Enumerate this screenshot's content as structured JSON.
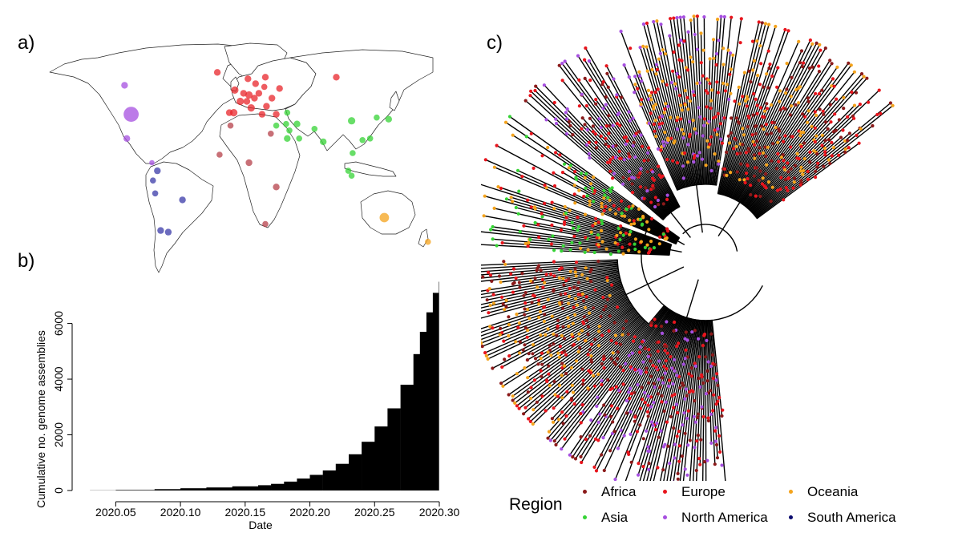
{
  "panels": {
    "a": "a)",
    "b": "b)",
    "c": "c)"
  },
  "chart_data": [
    {
      "type": "scatter",
      "kind": "world-map-bubbles",
      "title": "",
      "colors": {
        "Africa": "#b5404a",
        "Asia": "#35d335",
        "Europe": "#e8262b",
        "North America": "#a64fe0",
        "Oceania": "#f4a31c",
        "South America": "#3a3aa8"
      },
      "sites": [
        {
          "region": "North America",
          "lon": -104,
          "lat": 57,
          "size": 1
        },
        {
          "region": "North America",
          "lon": -98,
          "lat": 39,
          "size": 5
        },
        {
          "region": "North America",
          "lon": -102,
          "lat": 24,
          "size": 1
        },
        {
          "region": "North America",
          "lon": -79,
          "lat": 9,
          "size": 0.6
        },
        {
          "region": "South America",
          "lon": -74,
          "lat": 4,
          "size": 1
        },
        {
          "region": "South America",
          "lon": -78,
          "lat": -2,
          "size": 0.8
        },
        {
          "region": "South America",
          "lon": -76,
          "lat": -10,
          "size": 0.8
        },
        {
          "region": "South America",
          "lon": -51,
          "lat": -14,
          "size": 1
        },
        {
          "region": "South America",
          "lon": -71,
          "lat": -33,
          "size": 1
        },
        {
          "region": "South America",
          "lon": -64,
          "lat": -34,
          "size": 1
        },
        {
          "region": "Africa",
          "lon": -7,
          "lat": 32,
          "size": 0.8
        },
        {
          "region": "Africa",
          "lon": 10,
          "lat": 9,
          "size": 1
        },
        {
          "region": "Africa",
          "lon": -17,
          "lat": 14,
          "size": 0.8
        },
        {
          "region": "Africa",
          "lon": 30,
          "lat": 27,
          "size": 0.8
        },
        {
          "region": "Africa",
          "lon": 35,
          "lat": -6,
          "size": 1
        },
        {
          "region": "Africa",
          "lon": 25,
          "lat": -29,
          "size": 0.8
        },
        {
          "region": "Europe",
          "lon": -19,
          "lat": 65,
          "size": 1
        },
        {
          "region": "Europe",
          "lon": -3,
          "lat": 54,
          "size": 1.2
        },
        {
          "region": "Europe",
          "lon": 2,
          "lat": 47,
          "size": 1.2
        },
        {
          "region": "Europe",
          "lon": 5,
          "lat": 52,
          "size": 1
        },
        {
          "region": "Europe",
          "lon": 10,
          "lat": 51,
          "size": 1.2
        },
        {
          "region": "Europe",
          "lon": 8,
          "lat": 47,
          "size": 1
        },
        {
          "region": "Europe",
          "lon": 12,
          "lat": 43,
          "size": 1.2
        },
        {
          "region": "Europe",
          "lon": 15,
          "lat": 49,
          "size": 1
        },
        {
          "region": "Europe",
          "lon": 19,
          "lat": 52,
          "size": 1
        },
        {
          "region": "Europe",
          "lon": 16,
          "lat": 58,
          "size": 1
        },
        {
          "region": "Europe",
          "lon": 9,
          "lat": 61,
          "size": 1
        },
        {
          "region": "Europe",
          "lon": 25,
          "lat": 62,
          "size": 1
        },
        {
          "region": "Europe",
          "lon": 24,
          "lat": 56,
          "size": 0.8
        },
        {
          "region": "Europe",
          "lon": 31,
          "lat": 49,
          "size": 1
        },
        {
          "region": "Europe",
          "lon": 22,
          "lat": 39,
          "size": 1
        },
        {
          "region": "Europe",
          "lon": 26,
          "lat": 44,
          "size": 1
        },
        {
          "region": "Europe",
          "lon": -8,
          "lat": 40,
          "size": 1
        },
        {
          "region": "Europe",
          "lon": -4,
          "lat": 40,
          "size": 1.2
        },
        {
          "region": "Europe",
          "lon": 35,
          "lat": 39,
          "size": 1
        },
        {
          "region": "Europe",
          "lon": 38,
          "lat": 55,
          "size": 1
        },
        {
          "region": "Europe",
          "lon": 90,
          "lat": 62,
          "size": 1
        },
        {
          "region": "Asia",
          "lon": 35,
          "lat": 32,
          "size": 0.8
        },
        {
          "region": "Asia",
          "lon": 45,
          "lat": 40,
          "size": 0.8
        },
        {
          "region": "Asia",
          "lon": 44,
          "lat": 33,
          "size": 0.8
        },
        {
          "region": "Asia",
          "lon": 47,
          "lat": 29,
          "size": 0.8
        },
        {
          "region": "Asia",
          "lon": 54,
          "lat": 33,
          "size": 1
        },
        {
          "region": "Asia",
          "lon": 45,
          "lat": 24,
          "size": 1
        },
        {
          "region": "Asia",
          "lon": 56,
          "lat": 24,
          "size": 0.8
        },
        {
          "region": "Asia",
          "lon": 70,
          "lat": 30,
          "size": 0.8
        },
        {
          "region": "Asia",
          "lon": 78,
          "lat": 22,
          "size": 1
        },
        {
          "region": "Asia",
          "lon": 104,
          "lat": 35,
          "size": 1.2
        },
        {
          "region": "Asia",
          "lon": 127,
          "lat": 37,
          "size": 0.8
        },
        {
          "region": "Asia",
          "lon": 138,
          "lat": 36,
          "size": 1
        },
        {
          "region": "Asia",
          "lon": 121,
          "lat": 24,
          "size": 0.8
        },
        {
          "region": "Asia",
          "lon": 105,
          "lat": 15,
          "size": 0.8
        },
        {
          "region": "Asia",
          "lon": 101,
          "lat": 4,
          "size": 0.8
        },
        {
          "region": "Asia",
          "lon": 104,
          "lat": 1,
          "size": 0.8
        },
        {
          "region": "Asia",
          "lon": 114,
          "lat": 23,
          "size": 0.8
        },
        {
          "region": "Oceania",
          "lon": 134,
          "lat": -25,
          "size": 2
        },
        {
          "region": "Oceania",
          "lon": 174,
          "lat": -40,
          "size": 0.8
        }
      ]
    },
    {
      "type": "area",
      "kind": "cumulative-step",
      "title": "",
      "xlabel": "Date",
      "ylabel": "Cumulative no. genome assemblies",
      "xlim": [
        2020.025,
        2020.3
      ],
      "ylim": [
        0,
        7600
      ],
      "xticks": [
        "2020.05",
        "2020.10",
        "2020.15",
        "2020.20",
        "2020.25",
        "2020.30"
      ],
      "yticks": [
        "0",
        "2000",
        "4000",
        "6000"
      ],
      "x": [
        2020.03,
        2020.05,
        2020.08,
        2020.1,
        2020.12,
        2020.14,
        2020.16,
        2020.17,
        2020.18,
        2020.19,
        2020.2,
        2020.21,
        2020.22,
        2020.23,
        2020.24,
        2020.25,
        2020.26,
        2020.27,
        2020.28,
        2020.285,
        2020.29,
        2020.295,
        2020.2995
      ],
      "values": [
        5,
        20,
        50,
        80,
        110,
        150,
        190,
        240,
        320,
        430,
        560,
        720,
        960,
        1300,
        1750,
        2300,
        2950,
        3800,
        4900,
        5700,
        6400,
        7100,
        7500
      ],
      "grid": false
    },
    {
      "type": "scatter",
      "kind": "radial-phylogenetic-tree",
      "title": "",
      "legend": {
        "title": "Region",
        "placement": "bottom",
        "items": [
          {
            "label": "Africa",
            "color": "#8b1a1a"
          },
          {
            "label": "Europe",
            "color": "#e8141c"
          },
          {
            "label": "Oceania",
            "color": "#f4a31c"
          },
          {
            "label": "Asia",
            "color": "#35d335"
          },
          {
            "label": "North America",
            "color": "#a64fe0"
          },
          {
            "label": "South America",
            "color": "#0a0a6e"
          }
        ]
      }
    }
  ]
}
